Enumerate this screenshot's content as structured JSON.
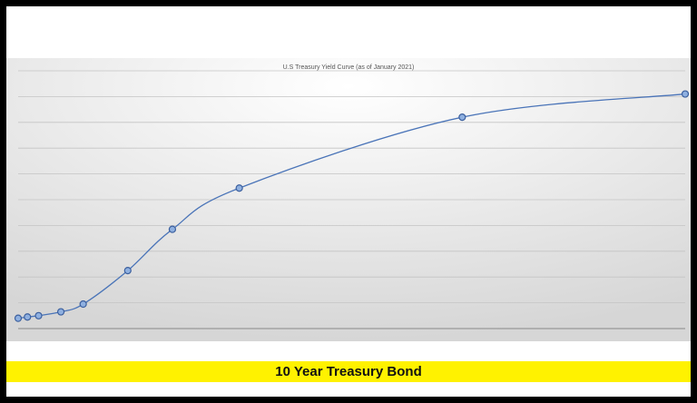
{
  "chart_data": {
    "type": "line",
    "title": "U.S Treasury Yield Curve (as of January 2021)",
    "xlabel": "",
    "ylabel": "",
    "x_unit": "maturity (months)",
    "x": [
      1,
      6,
      12,
      24,
      36,
      60,
      84,
      120,
      240,
      360
    ],
    "values": [
      0.08,
      0.09,
      0.1,
      0.13,
      0.19,
      0.45,
      0.77,
      1.09,
      1.64,
      1.82
    ],
    "ylim": [
      0,
      2
    ],
    "xlim": [
      1,
      360
    ],
    "grid": true,
    "gridline_step": 0.2,
    "smooth": true,
    "markers": true,
    "line_color": "#4a74b8"
  },
  "caption": "10 Year Treasury Bond",
  "colors": {
    "banner": "#fff200",
    "frame": "#000000"
  }
}
